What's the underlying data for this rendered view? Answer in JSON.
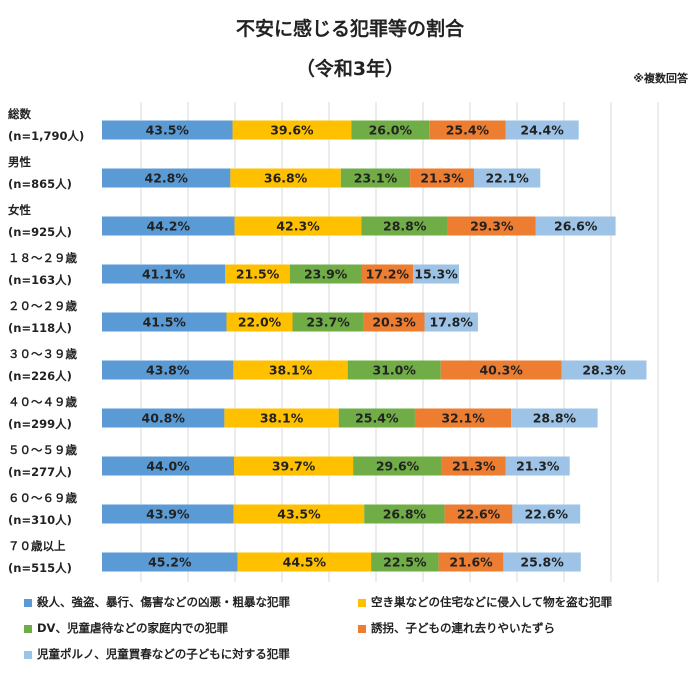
{
  "title": "不安に感じる犯罪等の割合",
  "subtitle": "（令和3年）",
  "note": "※複数回答",
  "colors": {
    "series": [
      "#5b9bd5",
      "#ffc000",
      "#70ad47",
      "#ed7d31",
      "#9dc3e6"
    ],
    "grid": "#d9d9d9"
  },
  "chart_data": {
    "type": "bar",
    "orientation": "horizontal",
    "stacked": true,
    "grid": true,
    "legend": "bottom",
    "categories": [
      [
        "総数",
        "(n=1,790人)"
      ],
      [
        "男性",
        "(n=865人)"
      ],
      [
        "女性",
        "(n=925人)"
      ],
      [
        "１８～２９歳",
        "(n=163人)"
      ],
      [
        "２０～２９歳",
        "(n=118人)"
      ],
      [
        "３０～３９歳",
        "(n=226人)"
      ],
      [
        "４０～４９歳",
        "(n=299人)"
      ],
      [
        "５０～５９歳",
        "(n=277人)"
      ],
      [
        "６０～６９歳",
        "(n=310人)"
      ],
      [
        "７０歳以上",
        "(n=515人)"
      ]
    ],
    "series": [
      {
        "name": "殺人、強盗、暴行、傷害などの凶悪・粗暴な犯罪",
        "values": [
          43.5,
          42.8,
          44.2,
          41.1,
          41.5,
          43.8,
          40.8,
          44.0,
          43.9,
          45.2
        ]
      },
      {
        "name": "空き巣などの住宅などに侵入して物を盗む犯罪",
        "values": [
          39.6,
          36.8,
          42.3,
          21.5,
          22.0,
          38.1,
          38.1,
          39.7,
          43.5,
          44.5
        ]
      },
      {
        "name": "DV、児童虐待などの家庭内での犯罪",
        "values": [
          26.0,
          23.1,
          28.8,
          23.9,
          23.7,
          31.0,
          25.4,
          29.6,
          26.8,
          22.5
        ]
      },
      {
        "name": "誘拐、子どもの連れ去りやいたずら",
        "values": [
          25.4,
          21.3,
          29.3,
          17.2,
          20.3,
          40.3,
          32.1,
          21.3,
          22.6,
          21.6
        ]
      },
      {
        "name": "児童ポルノ、児童買春などの子どもに対する犯罪",
        "values": [
          24.4,
          22.1,
          26.6,
          15.3,
          17.8,
          28.3,
          28.8,
          21.3,
          22.6,
          25.8
        ]
      }
    ],
    "value_format": "%",
    "xlim": [
      0,
      200
    ]
  }
}
